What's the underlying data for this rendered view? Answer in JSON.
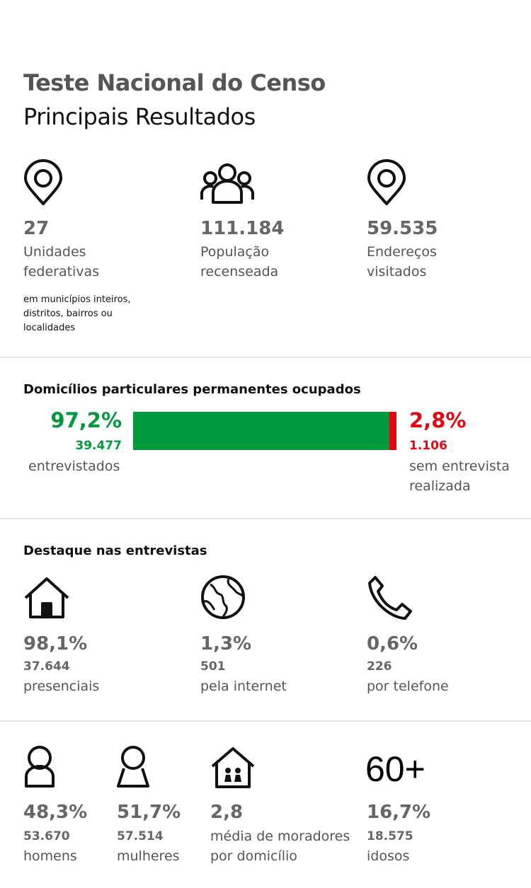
{
  "header": {
    "title": "Teste Nacional do Censo",
    "subtitle": "Principais Resultados"
  },
  "summary": [
    {
      "value": "27",
      "label": "Unidades federativas",
      "note": "em municípios inteiros, distritos, bairros ou localidades"
    },
    {
      "value": "111.184",
      "label": "População recenseada"
    },
    {
      "value": "59.535",
      "label": "Endereços visitados"
    }
  ],
  "households": {
    "title": "Domicílios particulares permanentes ocupados",
    "values": [
      97.2,
      2.8
    ],
    "value_labels": [
      "97,2%",
      "2,8%"
    ],
    "colors": [
      "#009a3e",
      "#e30613"
    ],
    "counts": [
      "39.477",
      "1.106"
    ],
    "labels": [
      "entrevistados",
      "sem entrevista realizada"
    ]
  },
  "interviews": {
    "title": "Destaque nas entrevistas",
    "items": [
      {
        "percent": "98,1%",
        "count": "37.644",
        "label": "presenciais"
      },
      {
        "percent": "1,3%",
        "count": "501",
        "label": "pela internet"
      },
      {
        "percent": "0,6%",
        "count": "226",
        "label": "por telefone"
      }
    ]
  },
  "residents": {
    "icon_text": "60+",
    "items": [
      {
        "percent": "48,3%",
        "count": "53.670",
        "label": "homens"
      },
      {
        "percent": "51,7%",
        "count": "57.514",
        "label": "mulheres"
      },
      {
        "percent": "2,8",
        "label": "média de moradores por domicílio"
      },
      {
        "percent": "16,7%",
        "count": "18.575",
        "label": "idosos"
      }
    ]
  }
}
